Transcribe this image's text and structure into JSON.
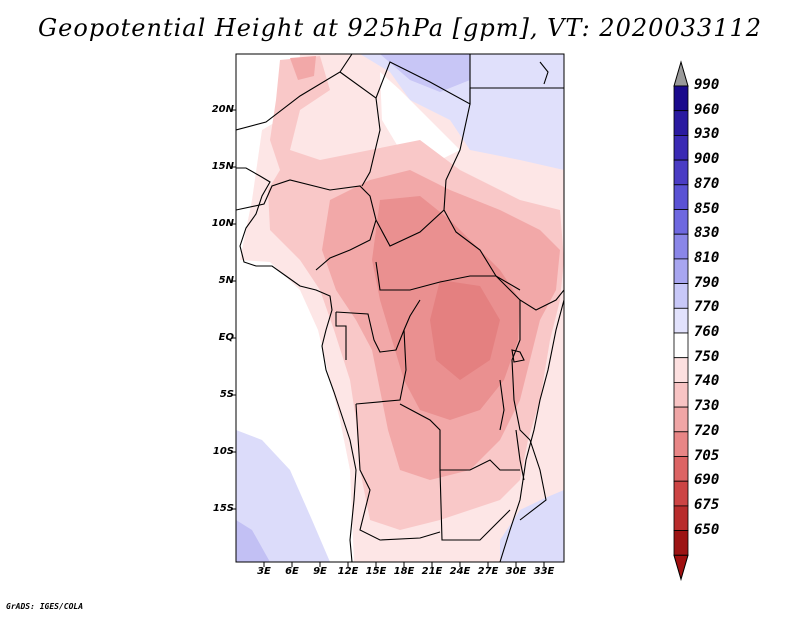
{
  "title": "Geopotential Height at 925hPa [gpm], VT: 2020033112",
  "credit": "GrADS: IGES/COLA",
  "map": {
    "lat_labels": [
      "20N",
      "15N",
      "10N",
      "5N",
      "EQ",
      "5S",
      "10S",
      "15S"
    ],
    "lon_labels": [
      "3E",
      "6E",
      "9E",
      "12E",
      "15E",
      "18E",
      "21E",
      "24E",
      "27E",
      "30E",
      "33E"
    ]
  },
  "colorbar": {
    "levels": [
      "990",
      "960",
      "930",
      "900",
      "870",
      "850",
      "830",
      "810",
      "790",
      "770",
      "760",
      "750",
      "740",
      "730",
      "720",
      "705",
      "690",
      "675",
      "650"
    ],
    "colors": [
      "#1a0a8c",
      "#2a1aa0",
      "#3a2ab4",
      "#4a3cc4",
      "#5a52d4",
      "#6e68e0",
      "#8a86e8",
      "#a8a6f0",
      "#c8c8f8",
      "#e2e2fc",
      "#ffffff",
      "#fde0e0",
      "#f8c4c4",
      "#f0a6a6",
      "#e88686",
      "#dc6464",
      "#cc4444",
      "#b82c2c",
      "#9c1414"
    ],
    "top_arrow": "#9a9a9a",
    "bottom_arrow": "#a01010"
  }
}
